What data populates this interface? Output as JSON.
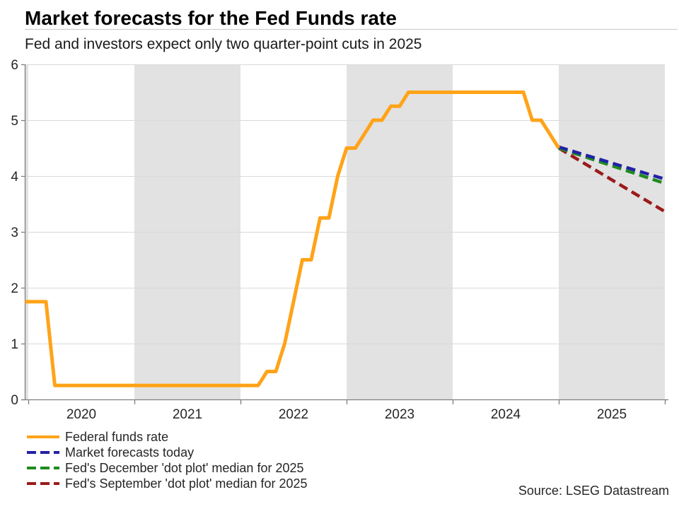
{
  "header": {
    "title": "Market forecasts for the Fed Funds rate",
    "subtitle": "Fed and investors expect only two quarter-point cuts in 2025"
  },
  "source": "Source: LSEG Datastream",
  "colors": {
    "federal_funds_rate": "#FFA318",
    "market_forecast": "#2222A6",
    "dec_dot_plot": "#1E8A1E",
    "sep_dot_plot": "#9B1B1B",
    "shaded_band": "#E2E2E2",
    "gridline": "#D9D9D9",
    "axis": "#7F7F7F",
    "tick_label": "#262626"
  },
  "legend": {
    "items": [
      {
        "label": "Federal funds rate",
        "color": "#FFA318",
        "dashed": false
      },
      {
        "label": "Market forecasts today",
        "color": "#2222A6",
        "dashed": true
      },
      {
        "label": "Fed's December 'dot plot' median for 2025",
        "color": "#1E8A1E",
        "dashed": true
      },
      {
        "label": "Fed's September 'dot plot' median for 2025",
        "color": "#9B1B1B",
        "dashed": true
      }
    ]
  },
  "chart_data": {
    "type": "line",
    "title": "Market forecasts for the Fed Funds rate",
    "subtitle": "Fed and investors expect only two quarter-point cuts in 2025",
    "xlabel": "",
    "ylabel": "",
    "xlim": [
      2019.97,
      2026
    ],
    "ylim": [
      0,
      6
    ],
    "y_ticks": [
      0,
      1,
      2,
      3,
      4,
      5,
      6
    ],
    "x_year_boundaries": [
      2020,
      2021,
      2022,
      2023,
      2024,
      2025,
      2026
    ],
    "x_tick_labels": [
      "2020",
      "2021",
      "2022",
      "2023",
      "2024",
      "2025"
    ],
    "shaded_year_bands": [
      [
        2019.97,
        2020
      ],
      [
        2021,
        2022
      ],
      [
        2023,
        2024
      ],
      [
        2025,
        2026
      ]
    ],
    "grid": "horizontal",
    "legend_position": "bottom-left",
    "series": [
      {
        "name": "Fed's September 'dot plot' median for 2025",
        "color": "#9B1B1B",
        "dashed": true,
        "points": [
          [
            2025.0,
            4.5
          ],
          [
            2025.99,
            3.375
          ]
        ]
      },
      {
        "name": "Fed's December 'dot plot' median for 2025",
        "color": "#1E8A1E",
        "dashed": true,
        "points": [
          [
            2025.0,
            4.5
          ],
          [
            2025.99,
            3.875
          ]
        ]
      },
      {
        "name": "Market forecasts today",
        "color": "#2222A6",
        "dashed": true,
        "points": [
          [
            2025.0,
            4.52
          ],
          [
            2025.99,
            3.95
          ]
        ]
      },
      {
        "name": "Federal funds rate",
        "color": "#FFA318",
        "dashed": false,
        "points": [
          [
            2019.97,
            1.75
          ],
          [
            2020.167,
            1.75
          ],
          [
            2020.25,
            0.25
          ],
          [
            2022.167,
            0.25
          ],
          [
            2022.25,
            0.5
          ],
          [
            2022.333,
            0.5
          ],
          [
            2022.417,
            1.0
          ],
          [
            2022.5,
            1.75
          ],
          [
            2022.583,
            2.5
          ],
          [
            2022.667,
            2.5
          ],
          [
            2022.75,
            3.25
          ],
          [
            2022.833,
            3.25
          ],
          [
            2022.917,
            4.0
          ],
          [
            2023.0,
            4.5
          ],
          [
            2023.083,
            4.5
          ],
          [
            2023.167,
            4.75
          ],
          [
            2023.25,
            5.0
          ],
          [
            2023.333,
            5.0
          ],
          [
            2023.417,
            5.25
          ],
          [
            2023.5,
            5.25
          ],
          [
            2023.583,
            5.5
          ],
          [
            2024.667,
            5.5
          ],
          [
            2024.75,
            5.0
          ],
          [
            2024.833,
            5.0
          ],
          [
            2024.917,
            4.75
          ],
          [
            2025.0,
            4.5
          ]
        ]
      }
    ]
  }
}
